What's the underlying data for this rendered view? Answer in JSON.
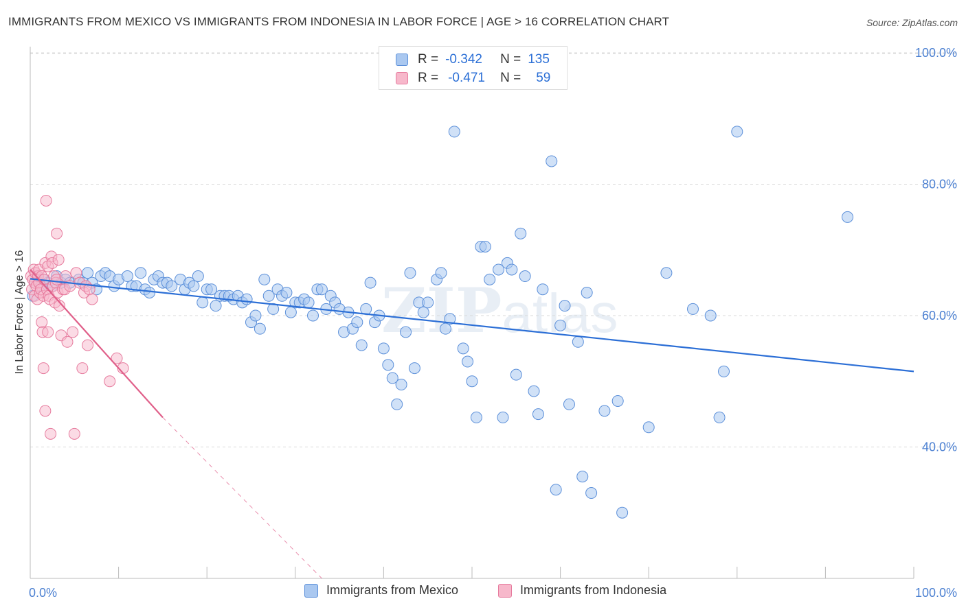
{
  "header": {
    "title": "IMMIGRANTS FROM MEXICO VS IMMIGRANTS FROM INDONESIA IN LABOR FORCE | AGE > 16 CORRELATION CHART",
    "source": "Source: ZipAtlas.com"
  },
  "watermark": {
    "zip": "ZIP",
    "atlas": "atlas"
  },
  "stats_legend": {
    "r_label": "R =",
    "n_label": "N =",
    "rows": [
      {
        "r": "-0.342",
        "n": "135"
      },
      {
        "r": "-0.471",
        "n": "59"
      }
    ]
  },
  "colors": {
    "mexico_fill": "#aac8f0",
    "mexico_stroke": "#5b8fd9",
    "mexico_line": "#2c6fd6",
    "indonesia_fill": "#f7b8cb",
    "indonesia_stroke": "#e67a9d",
    "indonesia_line": "#e0608a",
    "tick_label": "#4a7fd1",
    "grid": "#d9d9d9"
  },
  "chart_data": {
    "type": "scatter",
    "title": "IMMIGRANTS FROM MEXICO VS IMMIGRANTS FROM INDONESIA IN LABOR FORCE | AGE > 16 CORRELATION CHART",
    "xlabel": "",
    "ylabel": "In Labor Force | Age > 16",
    "xlim": [
      0,
      100
    ],
    "ylim": [
      20,
      102
    ],
    "x_tick_labels": [
      "0.0%",
      "100.0%"
    ],
    "y_ticks": [
      40,
      60,
      80,
      100
    ],
    "y_tick_labels": [
      "40.0%",
      "60.0%",
      "80.0%",
      "100.0%"
    ],
    "grid": "horizontal dashed",
    "legend_position": "bottom",
    "series": [
      {
        "name": "Immigrants from Mexico",
        "r": -0.342,
        "n": 135,
        "trend": {
          "x": [
            0,
            100
          ],
          "y": [
            65.6,
            51.5
          ],
          "style": "solid"
        },
        "points": [
          [
            0.3,
            63
          ],
          [
            0.5,
            65
          ],
          [
            0.8,
            66
          ],
          [
            1.2,
            64.5
          ],
          [
            1.5,
            65.5
          ],
          [
            2,
            65
          ],
          [
            2.5,
            64.5
          ],
          [
            3,
            66
          ],
          [
            3.5,
            65
          ],
          [
            4,
            65.5
          ],
          [
            4.5,
            65
          ],
          [
            5.5,
            65.5
          ],
          [
            6,
            65
          ],
          [
            6.5,
            66.5
          ],
          [
            7,
            65
          ],
          [
            7.5,
            64
          ],
          [
            8,
            66
          ],
          [
            8.5,
            66.5
          ],
          [
            9,
            66
          ],
          [
            9.5,
            64.5
          ],
          [
            10,
            65.5
          ],
          [
            11,
            66
          ],
          [
            11.5,
            64.5
          ],
          [
            12,
            64.5
          ],
          [
            12.5,
            66.5
          ],
          [
            13,
            64
          ],
          [
            13.5,
            63.5
          ],
          [
            14,
            65.5
          ],
          [
            14.5,
            66
          ],
          [
            15,
            65
          ],
          [
            15.5,
            65
          ],
          [
            16,
            64.5
          ],
          [
            17,
            65.5
          ],
          [
            17.5,
            64
          ],
          [
            18,
            65
          ],
          [
            18.5,
            64.5
          ],
          [
            19,
            66
          ],
          [
            19.5,
            62
          ],
          [
            20,
            64
          ],
          [
            20.5,
            64
          ],
          [
            21,
            61.5
          ],
          [
            21.5,
            63
          ],
          [
            22,
            63
          ],
          [
            22.5,
            63
          ],
          [
            23,
            62.5
          ],
          [
            23.5,
            63
          ],
          [
            24,
            62
          ],
          [
            24.5,
            62.5
          ],
          [
            25,
            59
          ],
          [
            25.5,
            60
          ],
          [
            26,
            58
          ],
          [
            26.5,
            65.5
          ],
          [
            27,
            63
          ],
          [
            27.5,
            61
          ],
          [
            28,
            64
          ],
          [
            28.5,
            63
          ],
          [
            29,
            63.5
          ],
          [
            29.5,
            60.5
          ],
          [
            30,
            62
          ],
          [
            30.5,
            62
          ],
          [
            31,
            62.5
          ],
          [
            31.5,
            62
          ],
          [
            32,
            60
          ],
          [
            32.5,
            64
          ],
          [
            33,
            64
          ],
          [
            33.5,
            61
          ],
          [
            34,
            63
          ],
          [
            34.5,
            62
          ],
          [
            35,
            61
          ],
          [
            35.5,
            57.5
          ],
          [
            36,
            60.5
          ],
          [
            36.5,
            58
          ],
          [
            37,
            59
          ],
          [
            37.5,
            55.5
          ],
          [
            38,
            61
          ],
          [
            38.5,
            65
          ],
          [
            39,
            59
          ],
          [
            39.5,
            60
          ],
          [
            40,
            55
          ],
          [
            40.5,
            52.5
          ],
          [
            41,
            50.5
          ],
          [
            41.5,
            46.5
          ],
          [
            42,
            49.5
          ],
          [
            42.5,
            57.5
          ],
          [
            43,
            66.5
          ],
          [
            43.5,
            52
          ],
          [
            44,
            62
          ],
          [
            44.5,
            60.5
          ],
          [
            45,
            62
          ],
          [
            46,
            65.5
          ],
          [
            46.5,
            66.5
          ],
          [
            47,
            58
          ],
          [
            47.5,
            59.5
          ],
          [
            48,
            88
          ],
          [
            49,
            55
          ],
          [
            49.5,
            53
          ],
          [
            50,
            50
          ],
          [
            50.5,
            44.5
          ],
          [
            51,
            70.5
          ],
          [
            51.5,
            70.5
          ],
          [
            52,
            65.5
          ],
          [
            53,
            67
          ],
          [
            53.5,
            44.5
          ],
          [
            54,
            68
          ],
          [
            54.5,
            67
          ],
          [
            55,
            51
          ],
          [
            55.5,
            72.5
          ],
          [
            56,
            66
          ],
          [
            57,
            48.5
          ],
          [
            57.5,
            45
          ],
          [
            58,
            64
          ],
          [
            59,
            83.5
          ],
          [
            59.5,
            33.5
          ],
          [
            60,
            58.5
          ],
          [
            60.5,
            61.5
          ],
          [
            61,
            46.5
          ],
          [
            62,
            56
          ],
          [
            62.5,
            35.5
          ],
          [
            63,
            63.5
          ],
          [
            63.5,
            33
          ],
          [
            65,
            45.5
          ],
          [
            66.5,
            47
          ],
          [
            67,
            30
          ],
          [
            70,
            43
          ],
          [
            72,
            66.5
          ],
          [
            75,
            61
          ],
          [
            77,
            60
          ],
          [
            78,
            44.5
          ],
          [
            78.5,
            51.5
          ],
          [
            80,
            88
          ],
          [
            92.5,
            75
          ]
        ]
      },
      {
        "name": "Immigrants from Indonesia",
        "r": -0.471,
        "n": 59,
        "trend": {
          "x": [
            0,
            15
          ],
          "y": [
            67,
            44.5
          ],
          "dashed_to": [
            33,
            20
          ],
          "style": "solid-then-dashed"
        },
        "points": [
          [
            0.1,
            66
          ],
          [
            0.2,
            64
          ],
          [
            0.3,
            65.5
          ],
          [
            0.4,
            67
          ],
          [
            0.5,
            63
          ],
          [
            0.5,
            65
          ],
          [
            0.6,
            66.5
          ],
          [
            0.7,
            64.5
          ],
          [
            0.8,
            62.5
          ],
          [
            0.9,
            66
          ],
          [
            1,
            65
          ],
          [
            1,
            67
          ],
          [
            1.1,
            63.5
          ],
          [
            1.2,
            64
          ],
          [
            1.3,
            66
          ],
          [
            1.3,
            59
          ],
          [
            1.4,
            57.5
          ],
          [
            1.5,
            52
          ],
          [
            1.5,
            63
          ],
          [
            1.6,
            65.5
          ],
          [
            1.7,
            45.5
          ],
          [
            1.7,
            68
          ],
          [
            1.8,
            77.5
          ],
          [
            1.9,
            64
          ],
          [
            2,
            57.5
          ],
          [
            2,
            67.5
          ],
          [
            2.1,
            63
          ],
          [
            2.2,
            62.5
          ],
          [
            2.3,
            42
          ],
          [
            2.4,
            69
          ],
          [
            2.5,
            68
          ],
          [
            2.6,
            64.5
          ],
          [
            2.7,
            66
          ],
          [
            2.8,
            62
          ],
          [
            2.9,
            65
          ],
          [
            3,
            65.5
          ],
          [
            3,
            72.5
          ],
          [
            3.1,
            63.5
          ],
          [
            3.2,
            68.5
          ],
          [
            3.3,
            61.5
          ],
          [
            3.5,
            57
          ],
          [
            3.7,
            64
          ],
          [
            3.9,
            64
          ],
          [
            4,
            66
          ],
          [
            4.2,
            56
          ],
          [
            4.5,
            64.5
          ],
          [
            4.8,
            57.5
          ],
          [
            5,
            42
          ],
          [
            5.2,
            66.5
          ],
          [
            5.6,
            65
          ],
          [
            5.9,
            52
          ],
          [
            6.1,
            63.5
          ],
          [
            6.3,
            64.5
          ],
          [
            6.5,
            55.5
          ],
          [
            6.7,
            64
          ],
          [
            7,
            62.5
          ],
          [
            9,
            50
          ],
          [
            9.8,
            53.5
          ],
          [
            10.5,
            52
          ]
        ]
      }
    ]
  },
  "bottom_legend": {
    "items": [
      {
        "label": "Immigrants from Mexico"
      },
      {
        "label": "Immigrants from Indonesia"
      }
    ]
  }
}
